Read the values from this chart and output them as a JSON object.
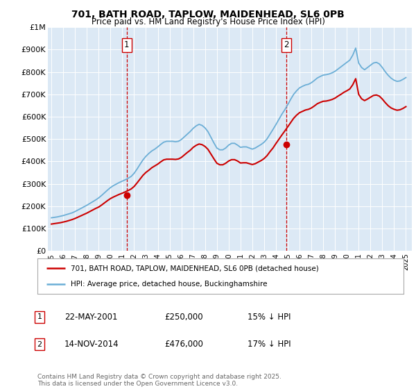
{
  "title": "701, BATH ROAD, TAPLOW, MAIDENHEAD, SL6 0PB",
  "subtitle": "Price paid vs. HM Land Registry's House Price Index (HPI)",
  "fig_bg_color": "#ffffff",
  "plot_bg_color": "#dce9f5",
  "hpi_color": "#6baed6",
  "price_color": "#cc0000",
  "ylabel_ticks": [
    "£0",
    "£100K",
    "£200K",
    "£300K",
    "£400K",
    "£500K",
    "£600K",
    "£700K",
    "£800K",
    "£900K",
    "£1M"
  ],
  "ytick_values": [
    0,
    100000,
    200000,
    300000,
    400000,
    500000,
    600000,
    700000,
    800000,
    900000,
    1000000
  ],
  "ylim": [
    0,
    1000000
  ],
  "xlim_start": 1994.7,
  "xlim_end": 2025.5,
  "sale1_date_num": 2001.38,
  "sale1_price": 250000,
  "sale2_date_num": 2014.87,
  "sale2_price": 476000,
  "annotation1_label": "1",
  "annotation1_text": "22-MAY-2001",
  "annotation1_amount": "£250,000",
  "annotation1_pct": "15% ↓ HPI",
  "annotation2_label": "2",
  "annotation2_text": "14-NOV-2014",
  "annotation2_amount": "£476,000",
  "annotation2_pct": "17% ↓ HPI",
  "legend_line1": "701, BATH ROAD, TAPLOW, MAIDENHEAD, SL6 0PB (detached house)",
  "legend_line2": "HPI: Average price, detached house, Buckinghamshire",
  "footer": "Contains HM Land Registry data © Crown copyright and database right 2025.\nThis data is licensed under the Open Government Licence v3.0.",
  "hpi_years": [
    1995.0,
    1995.25,
    1995.5,
    1995.75,
    1996.0,
    1996.25,
    1996.5,
    1996.75,
    1997.0,
    1997.25,
    1997.5,
    1997.75,
    1998.0,
    1998.25,
    1998.5,
    1998.75,
    1999.0,
    1999.25,
    1999.5,
    1999.75,
    2000.0,
    2000.25,
    2000.5,
    2000.75,
    2001.0,
    2001.25,
    2001.5,
    2001.75,
    2002.0,
    2002.25,
    2002.5,
    2002.75,
    2003.0,
    2003.25,
    2003.5,
    2003.75,
    2004.0,
    2004.25,
    2004.5,
    2004.75,
    2005.0,
    2005.25,
    2005.5,
    2005.75,
    2006.0,
    2006.25,
    2006.5,
    2006.75,
    2007.0,
    2007.25,
    2007.5,
    2007.75,
    2008.0,
    2008.25,
    2008.5,
    2008.75,
    2009.0,
    2009.25,
    2009.5,
    2009.75,
    2010.0,
    2010.25,
    2010.5,
    2010.75,
    2011.0,
    2011.25,
    2011.5,
    2011.75,
    2012.0,
    2012.25,
    2012.5,
    2012.75,
    2013.0,
    2013.25,
    2013.5,
    2013.75,
    2014.0,
    2014.25,
    2014.5,
    2014.75,
    2015.0,
    2015.25,
    2015.5,
    2015.75,
    2016.0,
    2016.25,
    2016.5,
    2016.75,
    2017.0,
    2017.25,
    2017.5,
    2017.75,
    2018.0,
    2018.25,
    2018.5,
    2018.75,
    2019.0,
    2019.25,
    2019.5,
    2019.75,
    2020.0,
    2020.25,
    2020.5,
    2020.75,
    2021.0,
    2021.25,
    2021.5,
    2021.75,
    2022.0,
    2022.25,
    2022.5,
    2022.75,
    2023.0,
    2023.25,
    2023.5,
    2023.75,
    2024.0,
    2024.25,
    2024.5,
    2024.75,
    2025.0
  ],
  "hpi_values": [
    148000,
    150000,
    152000,
    155000,
    158000,
    162000,
    166000,
    170000,
    176000,
    183000,
    190000,
    197000,
    204000,
    212000,
    220000,
    228000,
    237000,
    248000,
    260000,
    272000,
    283000,
    292000,
    299000,
    306000,
    312000,
    318000,
    325000,
    333000,
    347000,
    366000,
    387000,
    407000,
    423000,
    436000,
    447000,
    455000,
    465000,
    476000,
    486000,
    490000,
    490000,
    490000,
    488000,
    490000,
    498000,
    510000,
    522000,
    534000,
    548000,
    559000,
    566000,
    561000,
    550000,
    533000,
    508000,
    483000,
    460000,
    452000,
    452000,
    460000,
    473000,
    481000,
    481000,
    473000,
    463000,
    465000,
    465000,
    460000,
    455000,
    460000,
    468000,
    476000,
    486000,
    501000,
    522000,
    543000,
    565000,
    588000,
    611000,
    631000,
    654000,
    678000,
    700000,
    716000,
    729000,
    736000,
    742000,
    745000,
    752000,
    762000,
    773000,
    780000,
    786000,
    788000,
    791000,
    796000,
    803000,
    813000,
    823000,
    833000,
    843000,
    853000,
    875000,
    907000,
    840000,
    820000,
    810000,
    820000,
    830000,
    840000,
    843000,
    836000,
    820000,
    801000,
    785000,
    772000,
    763000,
    758000,
    760000,
    767000,
    775000
  ],
  "price_years": [
    1995.0,
    1995.25,
    1995.5,
    1995.75,
    1996.0,
    1996.25,
    1996.5,
    1996.75,
    1997.0,
    1997.25,
    1997.5,
    1997.75,
    1998.0,
    1998.25,
    1998.5,
    1998.75,
    1999.0,
    1999.25,
    1999.5,
    1999.75,
    2000.0,
    2000.25,
    2000.5,
    2000.75,
    2001.0,
    2001.25,
    2001.5,
    2001.75,
    2002.0,
    2002.25,
    2002.5,
    2002.75,
    2003.0,
    2003.25,
    2003.5,
    2003.75,
    2004.0,
    2004.25,
    2004.5,
    2004.75,
    2005.0,
    2005.25,
    2005.5,
    2005.75,
    2006.0,
    2006.25,
    2006.5,
    2006.75,
    2007.0,
    2007.25,
    2007.5,
    2007.75,
    2008.0,
    2008.25,
    2008.5,
    2008.75,
    2009.0,
    2009.25,
    2009.5,
    2009.75,
    2010.0,
    2010.25,
    2010.5,
    2010.75,
    2011.0,
    2011.25,
    2011.5,
    2011.75,
    2012.0,
    2012.25,
    2012.5,
    2012.75,
    2013.0,
    2013.25,
    2013.5,
    2013.75,
    2014.0,
    2014.25,
    2014.5,
    2014.75,
    2015.0,
    2015.25,
    2015.5,
    2015.75,
    2016.0,
    2016.25,
    2016.5,
    2016.75,
    2017.0,
    2017.25,
    2017.5,
    2017.75,
    2018.0,
    2018.25,
    2018.5,
    2018.75,
    2019.0,
    2019.25,
    2019.5,
    2019.75,
    2020.0,
    2020.25,
    2020.5,
    2020.75,
    2021.0,
    2021.25,
    2021.5,
    2021.75,
    2022.0,
    2022.25,
    2022.5,
    2022.75,
    2023.0,
    2023.25,
    2023.5,
    2023.75,
    2024.0,
    2024.25,
    2024.5,
    2024.75,
    2025.0
  ],
  "price_values": [
    120000,
    122000,
    124000,
    126000,
    129000,
    132000,
    136000,
    140000,
    145000,
    151000,
    157000,
    163000,
    169000,
    176000,
    183000,
    190000,
    196000,
    205000,
    215000,
    225000,
    234000,
    241000,
    247000,
    253000,
    258000,
    264000,
    270000,
    277000,
    288000,
    304000,
    321000,
    338000,
    351000,
    361000,
    372000,
    380000,
    388000,
    398000,
    407000,
    410000,
    410000,
    410000,
    409000,
    411000,
    418000,
    429000,
    440000,
    450000,
    463000,
    472000,
    478000,
    475000,
    467000,
    454000,
    433000,
    412000,
    392000,
    385000,
    385000,
    392000,
    402000,
    408000,
    408000,
    402000,
    393000,
    394000,
    394000,
    390000,
    386000,
    390000,
    397000,
    404000,
    413000,
    426000,
    444000,
    460000,
    480000,
    499000,
    518000,
    536000,
    555000,
    574000,
    593000,
    607000,
    618000,
    624000,
    630000,
    633000,
    639000,
    648000,
    658000,
    664000,
    669000,
    670000,
    673000,
    677000,
    683000,
    692000,
    700000,
    709000,
    716000,
    724000,
    743000,
    770000,
    700000,
    680000,
    672000,
    679000,
    687000,
    695000,
    697000,
    692000,
    679000,
    663000,
    649000,
    639000,
    633000,
    629000,
    631000,
    637000,
    645000
  ],
  "xtick_years": [
    1995,
    1996,
    1997,
    1998,
    1999,
    2000,
    2001,
    2002,
    2003,
    2004,
    2005,
    2006,
    2007,
    2008,
    2009,
    2010,
    2011,
    2012,
    2013,
    2014,
    2015,
    2016,
    2017,
    2018,
    2019,
    2020,
    2021,
    2022,
    2023,
    2024,
    2025
  ]
}
